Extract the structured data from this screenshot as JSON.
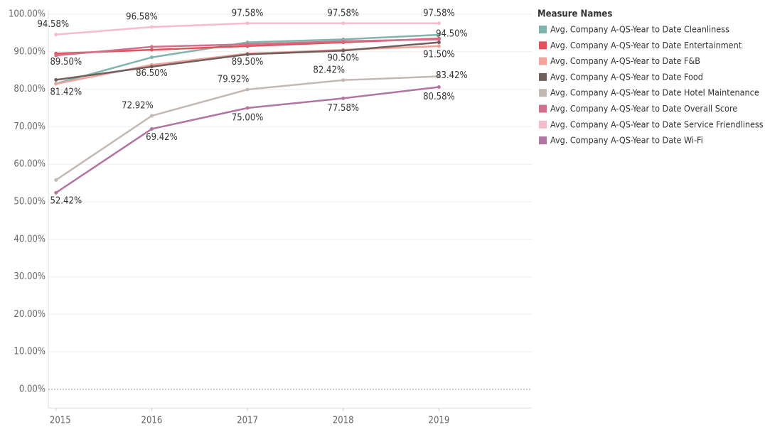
{
  "chart_data": {
    "type": "line",
    "legend_title": "Measure Names",
    "legend_position": "right",
    "grid": true,
    "x": [
      2015,
      2016,
      2017,
      2018,
      2019
    ],
    "xlim": [
      2014.92,
      2019.97
    ],
    "xticks": [
      2015,
      2016,
      2017,
      2018,
      2019
    ],
    "ylim": [
      -5,
      101
    ],
    "yticks": [
      {
        "value": 0,
        "label": "0.00%"
      },
      {
        "value": 10,
        "label": "10.00%"
      },
      {
        "value": 20,
        "label": "20.00%"
      },
      {
        "value": 30,
        "label": "30.00%"
      },
      {
        "value": 40,
        "label": "40.00%"
      },
      {
        "value": 50,
        "label": "50.00%"
      },
      {
        "value": 60,
        "label": "60.00%"
      },
      {
        "value": 70,
        "label": "70.00%"
      },
      {
        "value": 80,
        "label": "80.00%"
      },
      {
        "value": 90,
        "label": "90.00%"
      },
      {
        "value": 100,
        "label": "100.00%"
      }
    ],
    "series": [
      {
        "name": "Avg. Company A-QS-Year to Date Cleanliness",
        "color": "#7fb5ad",
        "values": [
          81.5,
          88.5,
          92.5,
          93.3,
          94.5
        ],
        "value_labels": [
          null,
          null,
          null,
          null,
          "94.50%"
        ]
      },
      {
        "name": "Avg. Company A-QS-Year to Date Entertainment",
        "color": "#e0535a",
        "values": [
          89.5,
          90.5,
          91.5,
          92.5,
          93.5
        ],
        "value_labels": [
          "89.50%",
          null,
          null,
          null,
          null
        ]
      },
      {
        "name": "Avg. Company A-QS-Year to Date F&B",
        "color": "#f4a29c",
        "values": [
          81.42,
          86.5,
          89.5,
          90.5,
          91.5
        ],
        "value_labels": [
          "81.42%",
          "86.50%",
          "89.50%",
          "90.50%",
          "91.50%"
        ]
      },
      {
        "name": "Avg. Company A-QS-Year to Date Food",
        "color": "#6f605e",
        "values": [
          82.5,
          86,
          89.3,
          90.3,
          92.5
        ],
        "value_labels": [
          null,
          null,
          null,
          null,
          null
        ]
      },
      {
        "name": "Avg. Company A-QS-Year to Date Hotel Maintenance",
        "color": "#c3b8b3",
        "values": [
          55.8,
          72.92,
          79.92,
          82.42,
          83.42
        ],
        "value_labels": [
          null,
          "72.92%",
          "79.92%",
          "82.42%",
          "83.42%"
        ]
      },
      {
        "name": "Avg. Company A-QS-Year to Date Overall Score",
        "color": "#d1708d",
        "values": [
          89,
          91.3,
          92,
          92.8,
          93.3
        ],
        "value_labels": [
          null,
          null,
          null,
          null,
          null
        ]
      },
      {
        "name": "Avg. Company A-QS-Year to Date Service Friendliness",
        "color": "#f6bccb",
        "values": [
          94.58,
          96.58,
          97.58,
          97.58,
          97.58
        ],
        "value_labels": [
          "94.58%",
          "96.58%",
          "97.58%",
          "97.58%",
          "97.58%"
        ]
      },
      {
        "name": "Avg. Company A-QS-Year to Date Wi-Fi",
        "color": "#b075a3",
        "values": [
          52.42,
          69.42,
          75,
          77.58,
          80.58
        ],
        "value_labels": [
          "52.42%",
          "69.42%",
          "75.00%",
          "77.58%",
          "80.58%"
        ]
      }
    ]
  }
}
